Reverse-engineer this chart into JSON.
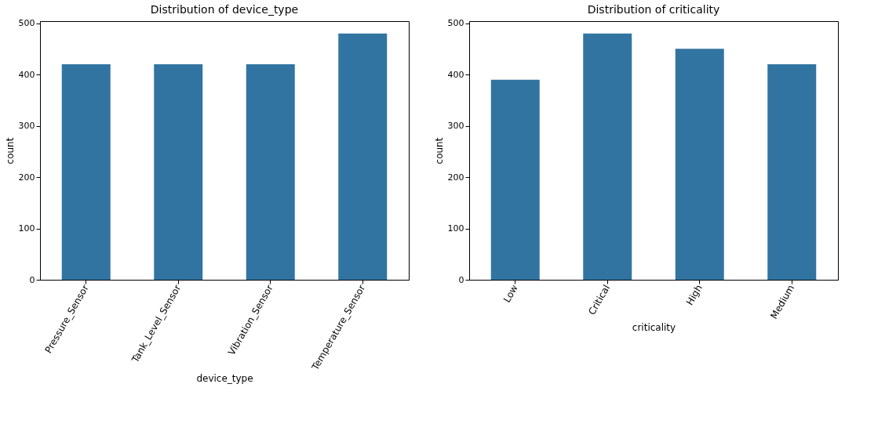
{
  "chart_data": [
    {
      "type": "bar",
      "title": "Distribution of device_type",
      "xlabel": "device_type",
      "ylabel": "count",
      "categories": [
        "Pressure_Sensor",
        "Tank_Level_Sensor",
        "Vibration_Sensor",
        "Temperature_Sensor"
      ],
      "values": [
        420,
        420,
        420,
        480
      ],
      "color": "#3274a1",
      "ylim": [
        0,
        504
      ],
      "yticks": [
        0,
        100,
        200,
        300,
        400,
        500
      ],
      "grid": false
    },
    {
      "type": "bar",
      "title": "Distribution of criticality",
      "xlabel": "criticality",
      "ylabel": "count",
      "categories": [
        "Low",
        "Critical",
        "High",
        "Medium"
      ],
      "values": [
        390,
        480,
        450,
        420
      ],
      "color": "#3274a1",
      "ylim": [
        0,
        504
      ],
      "yticks": [
        0,
        100,
        200,
        300,
        400,
        500
      ],
      "grid": false
    }
  ]
}
